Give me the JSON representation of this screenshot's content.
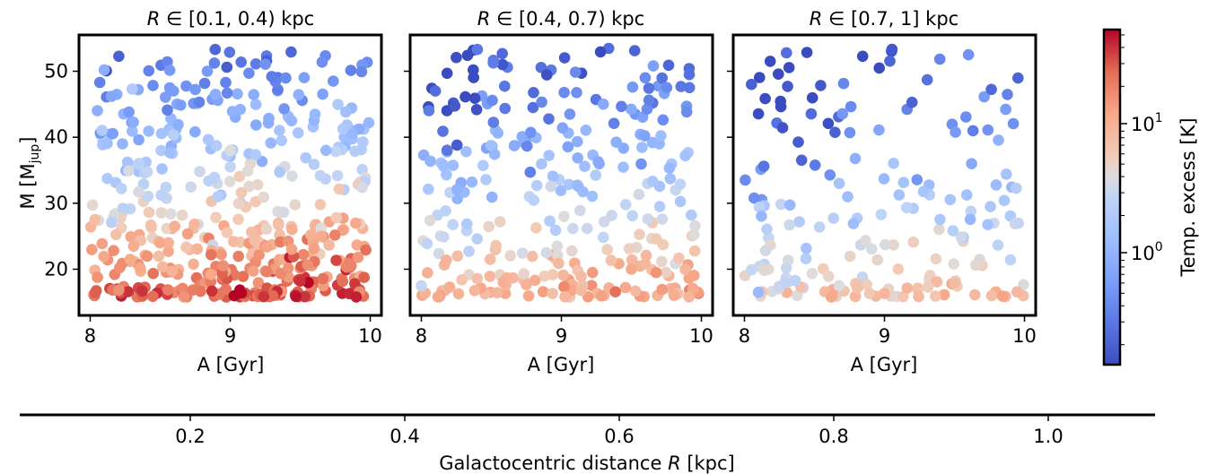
{
  "panels": [
    {
      "title": "R ∈ [0.1, 0.4) kpc",
      "title_var": "R",
      "title_rest": " ∈ [0.1, 0.4) kpc",
      "xlabel": "A [Gyr]"
    },
    {
      "title": "R ∈ [0.4, 0.7) kpc",
      "title_var": "R",
      "title_rest": " ∈ [0.4, 0.7) kpc",
      "xlabel": "A [Gyr]"
    },
    {
      "title": "R ∈ [0.7, 1] kpc",
      "title_var": "R",
      "title_rest": " ∈ [0.7, 1] kpc",
      "xlabel": "A [Gyr]"
    }
  ],
  "ylabel": {
    "main": "M [M",
    "sub": "jup",
    "close": "]"
  },
  "colorbar": {
    "label": "Temp. excess [K]",
    "ticks": [
      "10",
      "10"
    ],
    "tick_exps": [
      "1",
      "0"
    ],
    "scale": "log",
    "cmap": "coolwarm"
  },
  "bottom_axis": {
    "label_pre": "Galactocentric distance ",
    "label_var": "R",
    "label_post": " [kpc]",
    "ticks": [
      "0.2",
      "0.4",
      "0.6",
      "0.8",
      "1.0"
    ]
  },
  "chart_data": [
    {
      "type": "scatter",
      "panel": "R ∈ [0.1, 0.4) kpc",
      "x_ticks": [
        "8",
        "9",
        "10"
      ],
      "y_ticks": [
        "20",
        "30",
        "40",
        "50"
      ],
      "xlim": [
        7.92,
        10.08
      ],
      "ylim": [
        13,
        55.5
      ],
      "n_points": 480,
      "trend": "low mass hot (~20-40 K at 16-24 M_jup), high mass cool (~1 K near 50 M_jup)",
      "sample_points": [
        [
          8.1,
          50.2,
          0.9
        ],
        [
          8.3,
          47.3,
          2.0
        ],
        [
          9.5,
          18.2,
          40
        ],
        [
          9.9,
          15.8,
          45
        ],
        [
          9.0,
          38.0,
          4.0
        ],
        [
          8.5,
          24.0,
          12
        ]
      ]
    },
    {
      "type": "scatter",
      "panel": "R ∈ [0.4, 0.7) kpc",
      "x_ticks": [
        "8",
        "9",
        "10"
      ],
      "y_ticks": [
        "20",
        "30",
        "40",
        "50"
      ],
      "xlim": [
        7.92,
        10.08
      ],
      "ylim": [
        13,
        55.5
      ],
      "n_points": 300,
      "trend": "cool (~0.2-1 K) above 30 M_jup, moderately warm (~5-15 K) below 25 M_jup",
      "sample_points": [
        [
          8.4,
          53.3,
          0.3
        ],
        [
          8.1,
          47.0,
          0.25
        ],
        [
          9.3,
          45.0,
          0.8
        ],
        [
          9.5,
          20.0,
          12
        ],
        [
          8.0,
          17.5,
          3
        ]
      ]
    },
    {
      "type": "scatter",
      "panel": "R ∈ [0.7, 1] kpc",
      "x_ticks": [
        "8",
        "9",
        "10"
      ],
      "y_ticks": [
        "20",
        "30",
        "40",
        "50"
      ],
      "xlim": [
        7.92,
        10.08
      ],
      "ylim": [
        13,
        55.5
      ],
      "n_points": 190,
      "trend": "coolest overall; blue above 35 M_jup, mild warm (~5-10 K) at 16-20 M_jup",
      "sample_points": [
        [
          8.3,
          52.8,
          0.25
        ],
        [
          8.05,
          48.0,
          0.2
        ],
        [
          9.6,
          52.5,
          0.5
        ],
        [
          9.5,
          18.0,
          8
        ],
        [
          8.1,
          16.5,
          1.2
        ]
      ]
    }
  ]
}
